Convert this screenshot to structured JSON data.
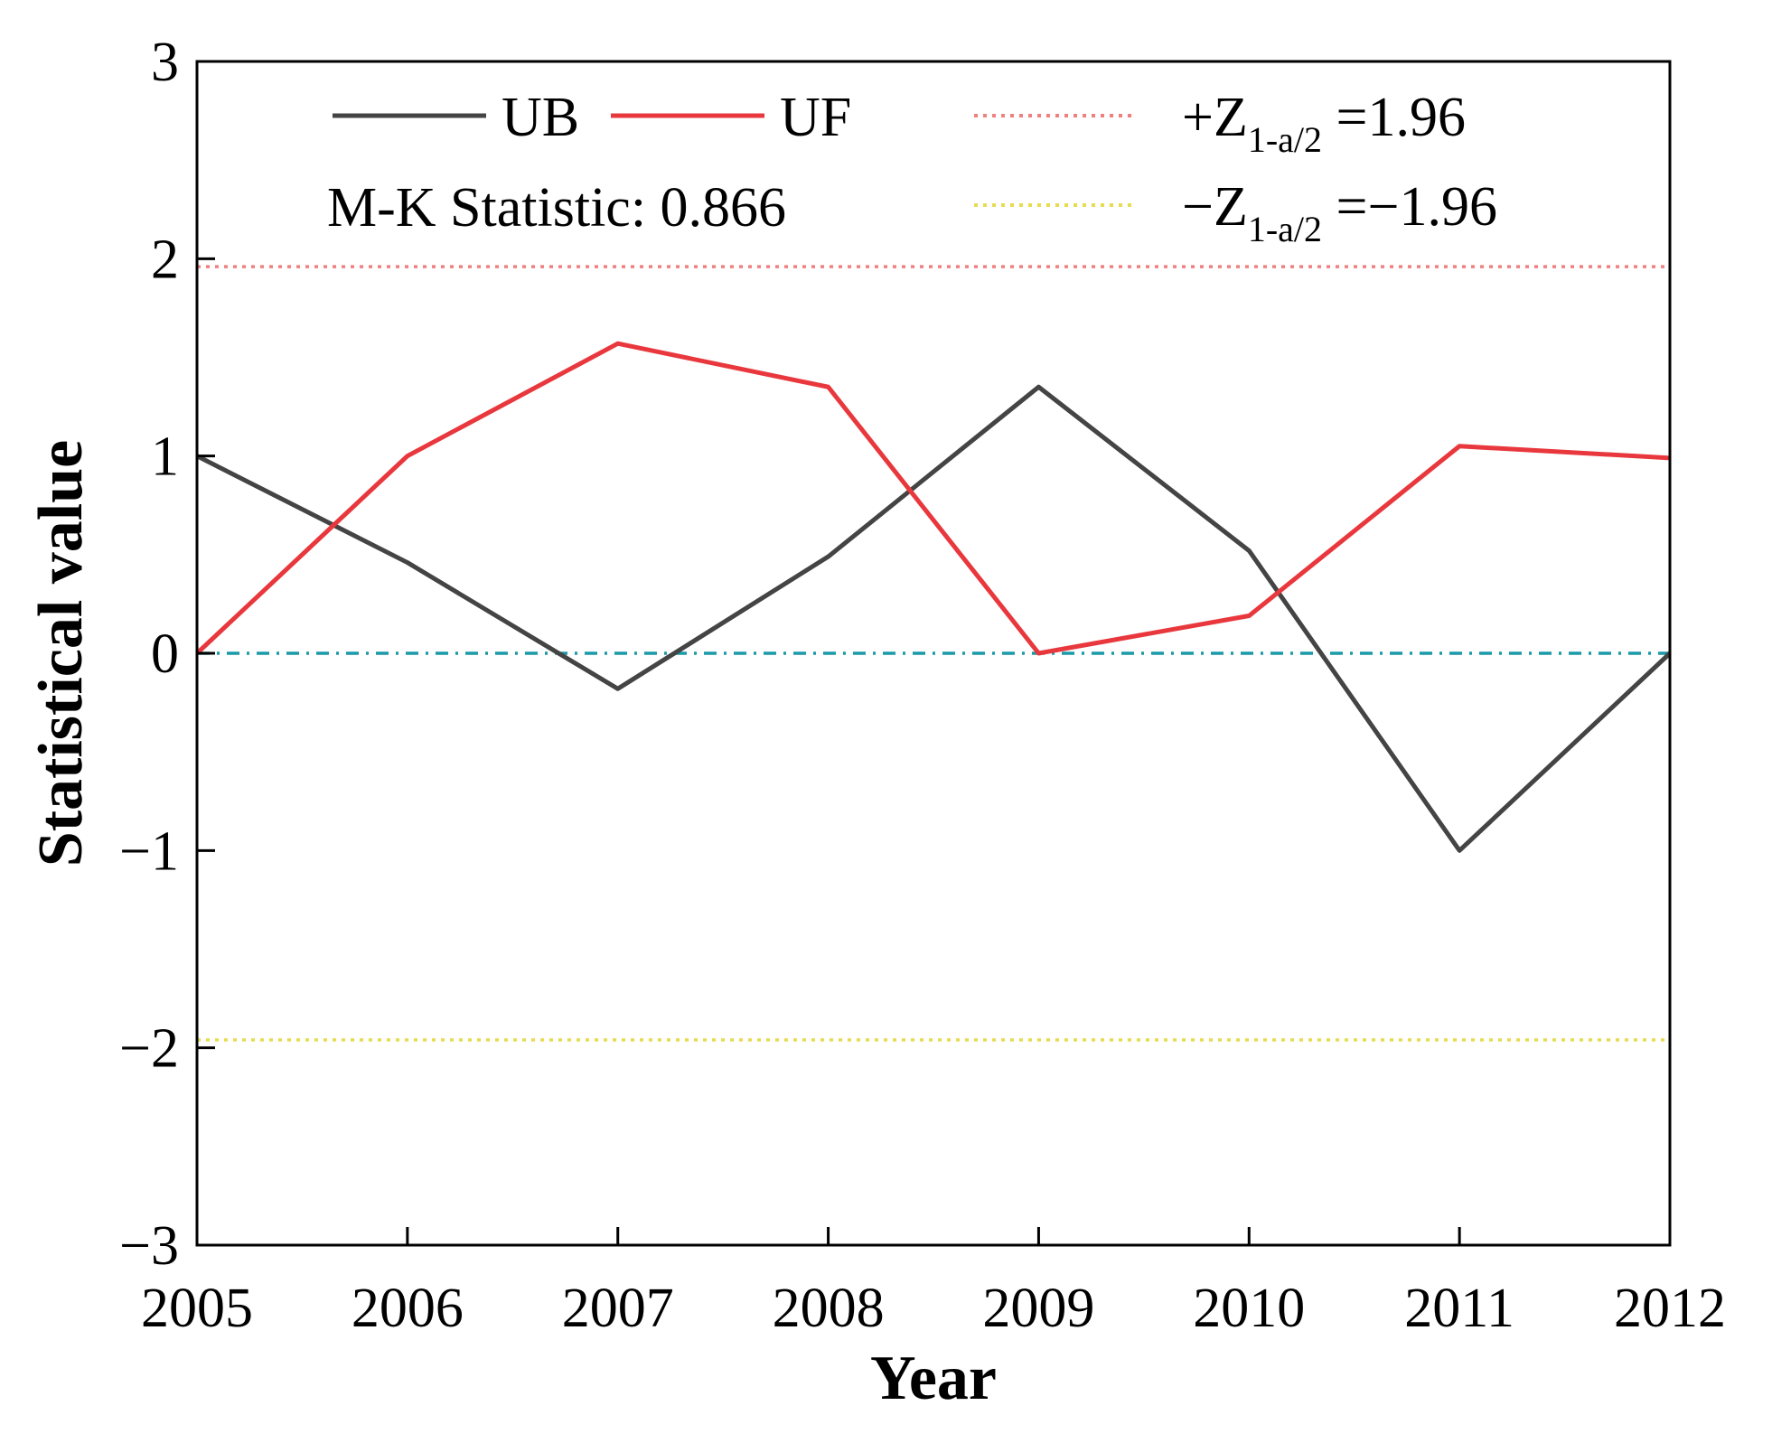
{
  "chart_data": {
    "type": "line",
    "x": [
      2005,
      2006,
      2007,
      2008,
      2009,
      2010,
      2011,
      2012
    ],
    "xlabel": "Year",
    "ylabel": "Statistical value",
    "xlim": [
      2005,
      2012
    ],
    "ylim": [
      -3,
      3
    ],
    "yticks": [
      -3,
      -2,
      -1,
      0,
      1,
      2,
      3
    ],
    "ytick_labels": [
      "−3",
      "−2",
      "−1",
      "0",
      "1",
      "2",
      "3"
    ],
    "xtick_labels": [
      "2005",
      "2006",
      "2007",
      "2008",
      "2009",
      "2010",
      "2011",
      "2012"
    ],
    "series": [
      {
        "name": "UB",
        "color": "#444444",
        "values": [
          1.0,
          0.46,
          -0.18,
          0.49,
          1.35,
          0.52,
          -1.0,
          0.0
        ]
      },
      {
        "name": "UF",
        "color": "#e8383d",
        "values": [
          0.0,
          1.0,
          1.57,
          1.35,
          0.0,
          0.19,
          1.05,
          0.99
        ]
      }
    ],
    "reference_lines": [
      {
        "name": "+Z",
        "value": 1.96,
        "color": "#f08080",
        "style": "dotted",
        "label_main": "+Z",
        "label_sub": "1-a/2",
        "label_tail": " =1.96"
      },
      {
        "name": "-Z",
        "value": -1.96,
        "color": "#e6dc50",
        "style": "dotted",
        "label_main": "−Z",
        "label_sub": "1-a/2",
        "label_tail": " =−1.96"
      },
      {
        "name": "zero",
        "value": 0,
        "color": "#1b9aa8",
        "style": "dash-dot"
      }
    ],
    "annotation": "M-K Statistic: 0.866",
    "legend_position": "top"
  }
}
